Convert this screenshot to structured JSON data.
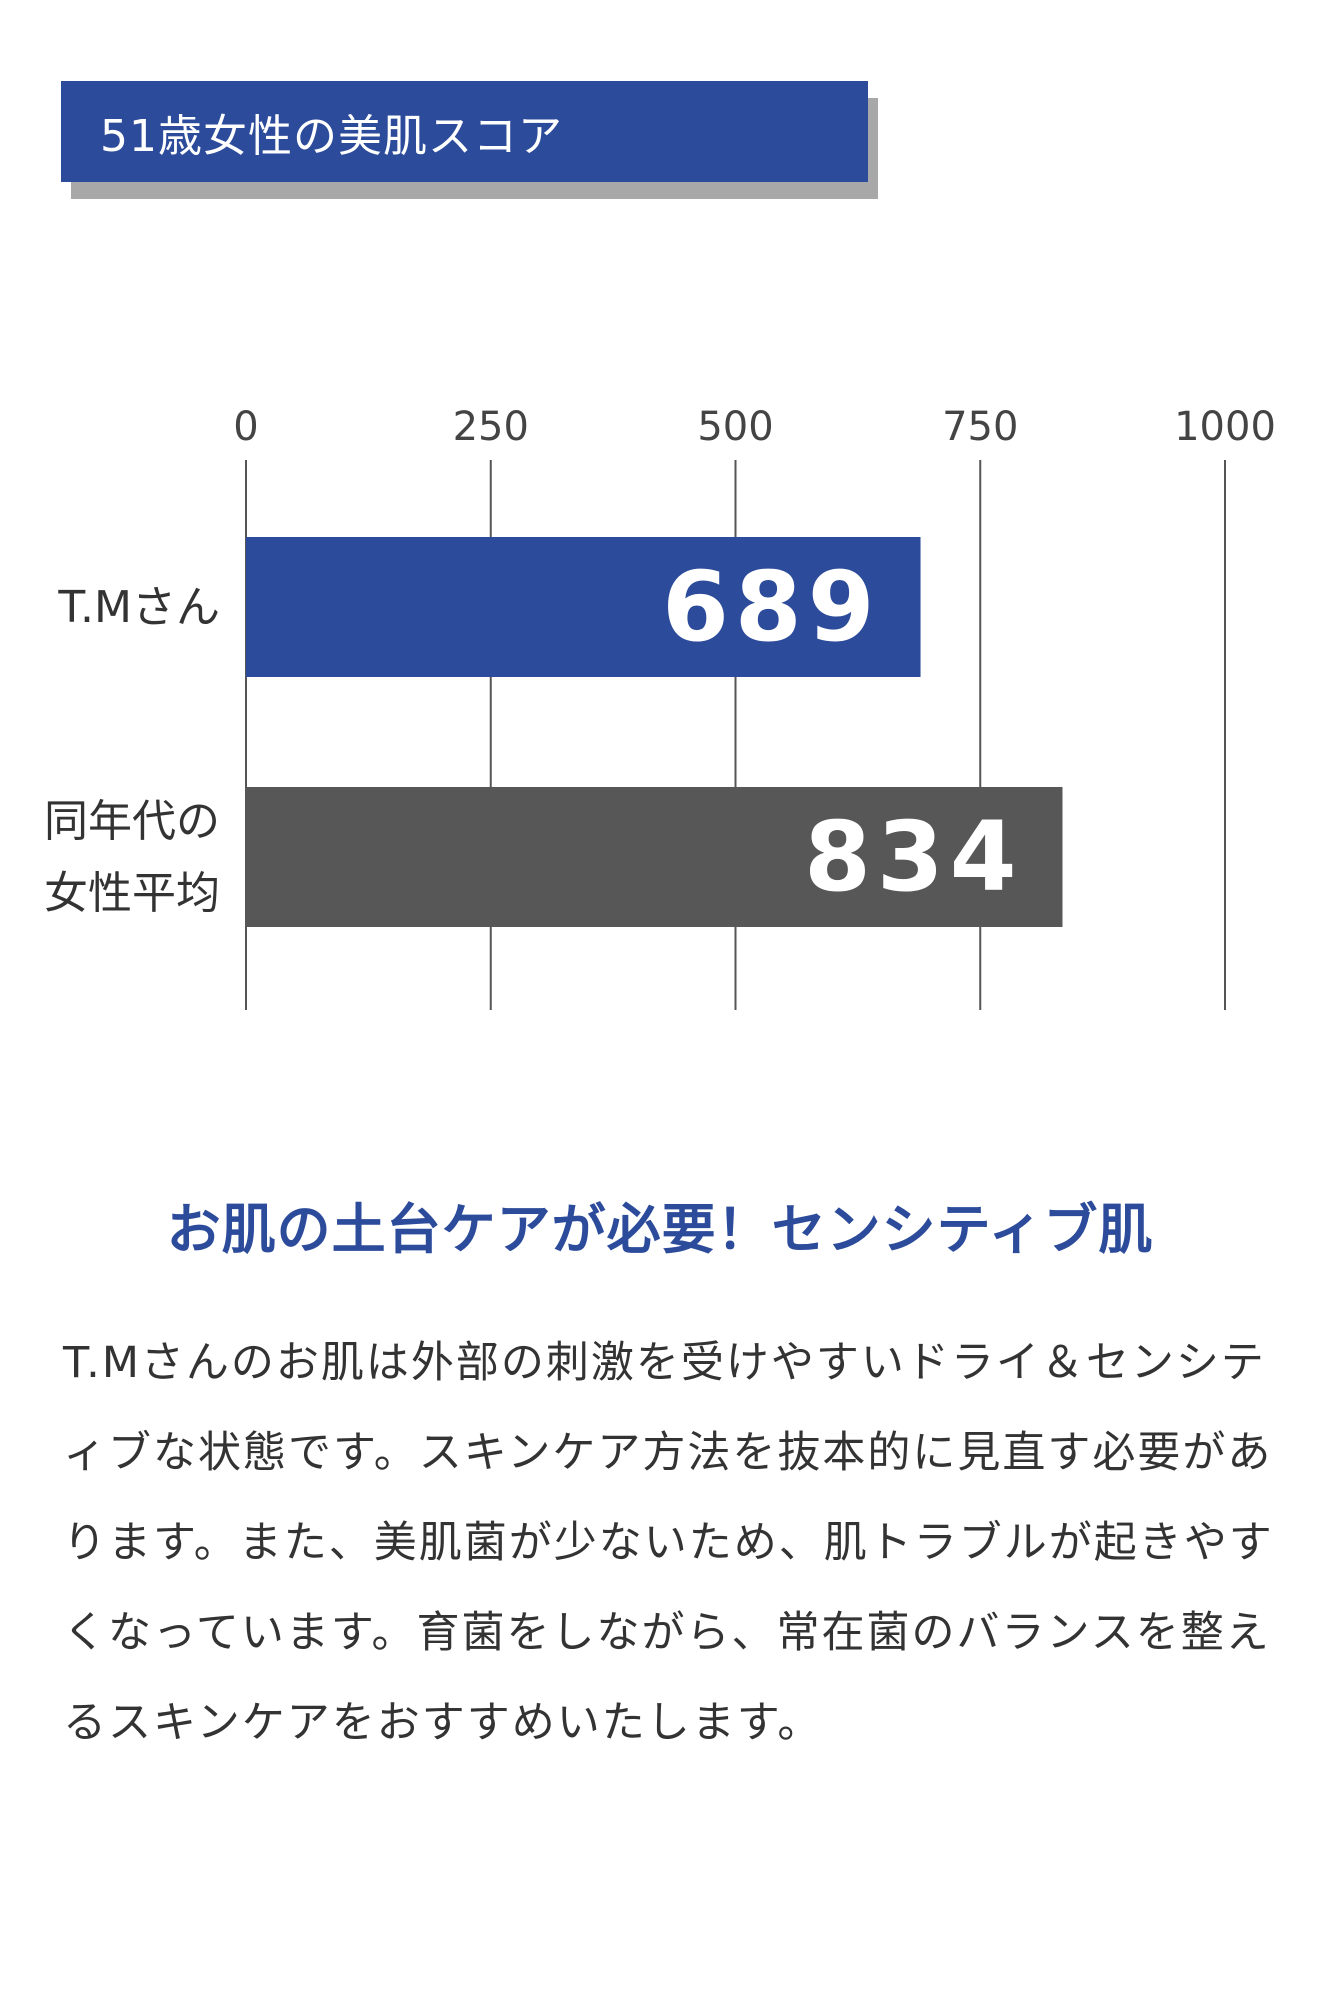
{
  "banner": {
    "title": "51歳女性の美肌スコア"
  },
  "chart_data": {
    "type": "bar",
    "orientation": "horizontal",
    "categories": [
      "T.Mさん",
      "同年代の女性平均"
    ],
    "category_lines": [
      [
        "T.Mさん"
      ],
      [
        "同年代の",
        "女性平均"
      ]
    ],
    "values": [
      689,
      834
    ],
    "data_labels": [
      "689",
      "834"
    ],
    "xlim": [
      0,
      1000
    ],
    "ticks": [
      0,
      250,
      500,
      750,
      1000
    ],
    "tick_labels": [
      "0",
      "250",
      "500",
      "750",
      "1000"
    ],
    "axis_position": "top",
    "grid": true,
    "colors": [
      "#2c4b9b",
      "#575757"
    ],
    "title": "",
    "xlabel": "",
    "ylabel": ""
  },
  "headline": "お肌の土台ケアが必要！センシティブ肌",
  "body": "T.Mさんのお肌は外部の刺激を受けやすいドライ＆センシティブな状態です。スキンケア方法を抜本的に見直す必要があります。また、美肌菌が少ないため、肌トラブルが起きやすくなっています。育菌をしながら、常在菌のバランスを整えるスキンケアをおすすめいたします。",
  "colors": {
    "accent": "#2c4b9b",
    "bar_average": "#575757",
    "banner_shadow": "#a8a8a8",
    "text": "#333333",
    "grid": "#555555"
  }
}
